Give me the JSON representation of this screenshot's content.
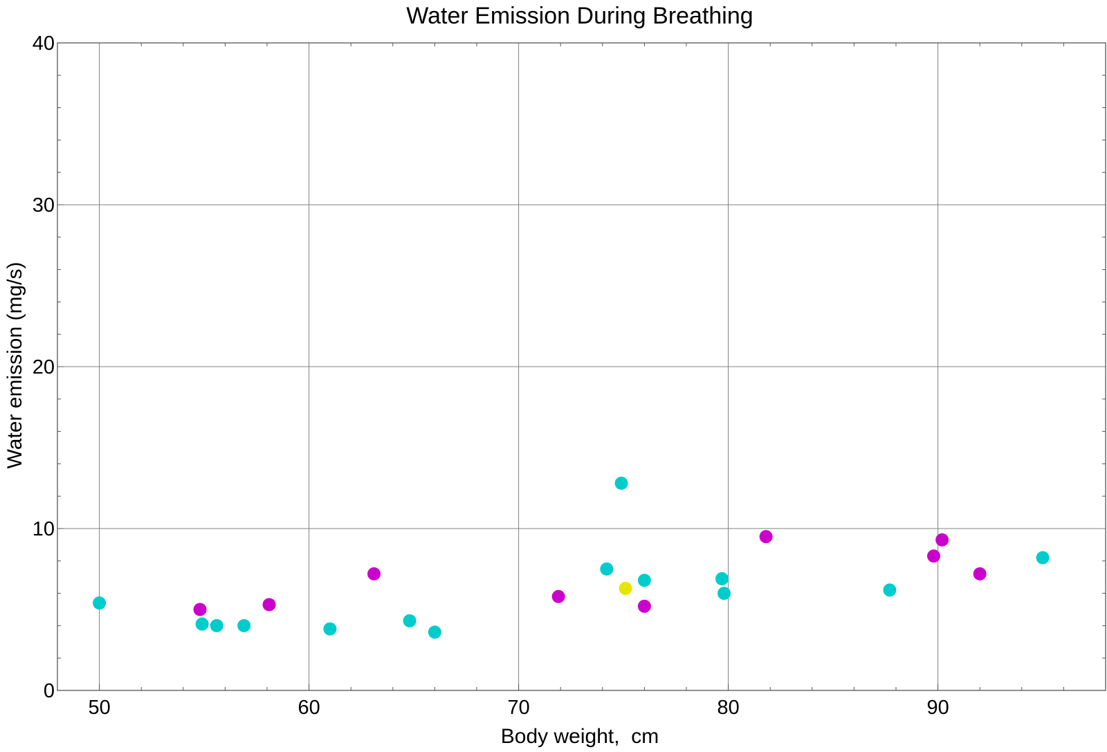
{
  "chart_data": {
    "type": "scatter",
    "title": "Water Emission During Breathing",
    "xlabel": "Body weight,  cm",
    "ylabel": "Water emission (mg/s)",
    "xlim": [
      48,
      98
    ],
    "ylim": [
      0,
      40
    ],
    "x_ticks": [
      50,
      60,
      70,
      80,
      90
    ],
    "y_ticks": [
      0,
      10,
      20,
      30,
      40
    ],
    "grid": true,
    "legend": "none",
    "series": [
      {
        "color": "#00cccc",
        "points": [
          {
            "x": 50.0,
            "y": 5.4
          },
          {
            "x": 54.9,
            "y": 4.1
          },
          {
            "x": 55.6,
            "y": 4.0
          },
          {
            "x": 56.9,
            "y": 4.0
          },
          {
            "x": 61.0,
            "y": 3.8
          },
          {
            "x": 64.8,
            "y": 4.3
          },
          {
            "x": 66.0,
            "y": 3.6
          },
          {
            "x": 74.2,
            "y": 7.5
          },
          {
            "x": 74.9,
            "y": 12.8
          },
          {
            "x": 76.0,
            "y": 6.8
          },
          {
            "x": 79.7,
            "y": 6.9
          },
          {
            "x": 79.8,
            "y": 6.0
          },
          {
            "x": 87.7,
            "y": 6.2
          },
          {
            "x": 95.0,
            "y": 8.2
          }
        ]
      },
      {
        "color": "#cc00cc",
        "points": [
          {
            "x": 54.8,
            "y": 5.0
          },
          {
            "x": 58.1,
            "y": 5.3
          },
          {
            "x": 63.1,
            "y": 7.2
          },
          {
            "x": 71.9,
            "y": 5.8
          },
          {
            "x": 76.0,
            "y": 5.2
          },
          {
            "x": 81.8,
            "y": 9.5
          },
          {
            "x": 89.8,
            "y": 8.3
          },
          {
            "x": 90.2,
            "y": 9.3
          },
          {
            "x": 92.0,
            "y": 7.2
          }
        ]
      },
      {
        "color": "#e6e600",
        "points": [
          {
            "x": 75.1,
            "y": 6.3
          }
        ]
      }
    ]
  }
}
